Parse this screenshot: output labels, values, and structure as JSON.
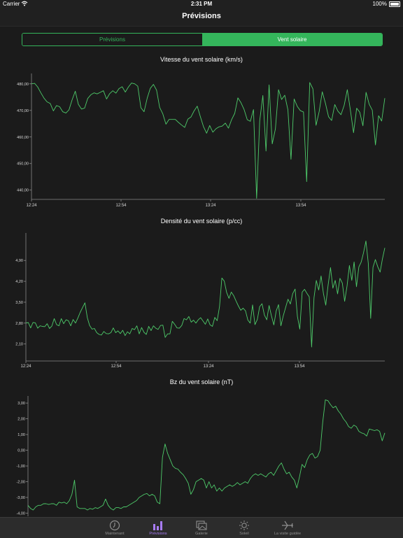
{
  "status": {
    "carrier": "Carrier",
    "time": "2:31 PM",
    "battery": "100%"
  },
  "nav": {
    "title": "Prévisions"
  },
  "segment": {
    "left": "Prévisions",
    "right": "Vent solaire",
    "selected": "Vent solaire"
  },
  "colors": {
    "accent": "#34b55b",
    "line": "#4ecb6a",
    "tab_active": "#a87cf5",
    "background": "#1b1b1b"
  },
  "tabs": [
    {
      "label": "Maintenant",
      "icon": "clock-icon",
      "active": false
    },
    {
      "label": "Prévisions",
      "icon": "bar-chart-icon",
      "active": true
    },
    {
      "label": "Galerie",
      "icon": "gallery-icon",
      "active": false
    },
    {
      "label": "Soleil",
      "icon": "sun-icon",
      "active": false
    },
    {
      "label": "La visite guidée",
      "icon": "airplane-icon",
      "active": false
    }
  ],
  "chart_data": [
    {
      "type": "line",
      "title": "Vitesse du vent solaire (km/s)",
      "x_ticks": [
        "12:24",
        "12:54",
        "13:24",
        "13:54"
      ],
      "y_ticks": [
        "480,00",
        "470,00",
        "460,00",
        "450,00",
        "440,00"
      ],
      "ylim": [
        436.5,
        483.9
      ],
      "series": [
        {
          "values": [
            480.0,
            480.2,
            478.8,
            476.6,
            474.6,
            473.2,
            472.6,
            469.8,
            471.8,
            471.4,
            469.5,
            469.0,
            470.2,
            474.0,
            477.2,
            472.3,
            470.5,
            470.9,
            474.5,
            475.9,
            476.6,
            476.2,
            476.8,
            477.4,
            474.3,
            476.3,
            477.4,
            476.5,
            478.2,
            478.9,
            476.9,
            478.8,
            480.3,
            480.0,
            479.1,
            471.0,
            469.5,
            474.6,
            478.3,
            479.8,
            477.6,
            471.1,
            468.7,
            464.8,
            466.6,
            466.6,
            466.6,
            465.5,
            464.5,
            463.6,
            466.7,
            467.5,
            469.8,
            471.6,
            467.7,
            463.9,
            461.4,
            464.3,
            461.8,
            463.1,
            463.8,
            464.1,
            465.2,
            463.3,
            466.5,
            468.9,
            474.7,
            472.9,
            470.3,
            466.5,
            465.9,
            470.3,
            436.9,
            466.1,
            475.6,
            454.7,
            479.6,
            457.4,
            463.0,
            477.8,
            474.1,
            475.7,
            470.2,
            451.6,
            474.3,
            471.5,
            469.9,
            469.4,
            443.2,
            480.5,
            478.1,
            464.4,
            469.6,
            477.0,
            472.7,
            467.6,
            466.2,
            472.2,
            469.7,
            468.4,
            471.9,
            477.8,
            470.1,
            461.6,
            470.8,
            469.3,
            464.2,
            476.8,
            472.3,
            470.1,
            457.0,
            468.0,
            466.0,
            474.6
          ]
        }
      ]
    },
    {
      "type": "line",
      "title": "Densité du vent solaire (p/cc)",
      "x_ticks": [
        "12:24",
        "12:54",
        "13:24",
        "13:54"
      ],
      "y_ticks": [
        "4,90",
        "4,20",
        "3,50",
        "2,80",
        "2,10"
      ],
      "ylim": [
        1.53,
        5.82
      ],
      "series": [
        {
          "values": [
            2.8,
            2.82,
            2.64,
            2.82,
            2.81,
            2.63,
            2.71,
            2.69,
            2.68,
            2.78,
            2.62,
            2.7,
            2.95,
            2.75,
            2.71,
            2.95,
            2.78,
            2.91,
            2.88,
            2.71,
            2.92,
            2.8,
            2.97,
            3.16,
            3.32,
            3.48,
            2.98,
            2.72,
            2.6,
            2.62,
            2.48,
            2.42,
            2.4,
            2.52,
            2.45,
            2.44,
            2.48,
            2.64,
            2.48,
            2.54,
            2.45,
            2.56,
            2.38,
            2.51,
            2.44,
            2.62,
            2.58,
            2.71,
            2.44,
            2.65,
            2.49,
            2.42,
            2.69,
            2.55,
            2.71,
            2.63,
            2.59,
            2.72,
            2.73,
            2.32,
            2.44,
            2.44,
            2.86,
            2.76,
            2.64,
            2.63,
            2.72,
            2.95,
            2.91,
            3.02,
            2.83,
            2.9,
            2.8,
            2.91,
            2.98,
            2.87,
            2.76,
            2.94,
            2.74,
            2.69,
            2.99,
            2.88,
            3.36,
            4.31,
            4.21,
            3.83,
            3.63,
            3.84,
            3.72,
            3.54,
            3.37,
            3.23,
            3.3,
            3.21,
            2.9,
            2.8,
            3.41,
            2.75,
            2.92,
            3.35,
            3.45,
            3.07,
            2.91,
            3.39,
            3.04,
            2.74,
            3.21,
            3.42,
            2.71,
            3.05,
            3.33,
            3.6,
            3.44,
            3.79,
            3.94,
            3.02,
            2.6,
            3.84,
            3.93,
            3.8,
            3.68,
            2.0,
            3.65,
            4.23,
            3.91,
            4.38,
            3.79,
            3.4,
            4.08,
            4.66,
            3.97,
            4.23,
            3.78,
            4.3,
            4.14,
            3.53,
            4.04,
            4.73,
            4.23,
            4.85,
            4.02,
            4.68,
            4.85,
            5.16,
            5.55,
            4.8,
            2.96,
            4.67,
            4.93,
            4.69,
            4.51,
            4.95,
            5.32
          ]
        }
      ]
    },
    {
      "type": "line",
      "title": "Bz du vent solaire (nT)",
      "x_ticks": [],
      "y_ticks": [
        "3,00",
        "2,00",
        "1,00",
        "0,00",
        "-1,00",
        "-2,00",
        "-3,00",
        "-4,00"
      ],
      "ylim": [
        -4.2,
        3.45
      ],
      "series": [
        {
          "values": [
            -3.5,
            -3.7,
            -3.8,
            -3.6,
            -3.5,
            -3.5,
            -3.4,
            -3.4,
            -3.45,
            -3.4,
            -3.4,
            -3.5,
            -3.3,
            -3.35,
            -3.3,
            -3.4,
            -3.2,
            -2.8,
            -1.9,
            -3.6,
            -3.7,
            -3.7,
            -3.7,
            -3.8,
            -3.7,
            -3.75,
            -3.65,
            -3.7,
            -3.6,
            -3.5,
            -3.1,
            -3.5,
            -3.7,
            -3.8,
            -3.65,
            -3.65,
            -3.7,
            -3.6,
            -3.6,
            -3.5,
            -3.4,
            -3.3,
            -3.2,
            -3.0,
            -2.9,
            -2.8,
            -2.75,
            -2.9,
            -2.8,
            -2.9,
            -3.3,
            -3.4,
            -0.45,
            0.4,
            -0.2,
            -0.6,
            -1.0,
            -1.15,
            -1.2,
            -1.4,
            -1.55,
            -1.8,
            -2.1,
            -2.8,
            -2.5,
            -2.0,
            -1.9,
            -1.8,
            -1.9,
            -2.4,
            -2.0,
            -2.4,
            -2.2,
            -2.6,
            -2.4,
            -2.6,
            -2.4,
            -2.3,
            -2.2,
            -2.3,
            -2.2,
            -2.05,
            -2.2,
            -2.1,
            -2.0,
            -2.1,
            -1.8,
            -1.6,
            -1.5,
            -1.6,
            -1.5,
            -1.6,
            -1.7,
            -1.5,
            -1.4,
            -1.6,
            -1.3,
            -1.0,
            -0.8,
            -1.2,
            -1.5,
            -1.4,
            -1.7,
            -1.9,
            -2.4,
            -1.7,
            -0.9,
            -1.1,
            -0.6,
            -0.3,
            -0.2,
            -0.5,
            -0.4,
            0.0,
            1.8,
            3.2,
            3.15,
            2.9,
            2.7,
            2.8,
            2.5,
            2.3,
            2.0,
            1.8,
            1.5,
            1.4,
            1.6,
            1.5,
            1.2,
            1.1,
            1.05,
            0.9,
            1.35,
            1.3,
            1.25,
            1.3,
            1.2,
            0.6,
            1.1
          ]
        }
      ]
    }
  ]
}
